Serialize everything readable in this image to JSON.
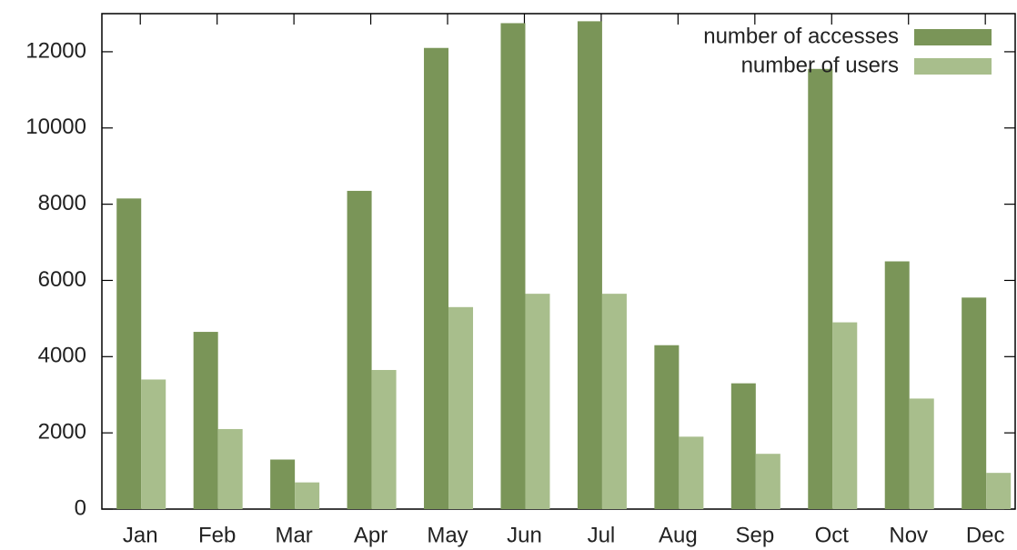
{
  "chart_data": {
    "type": "bar",
    "categories": [
      "Jan",
      "Feb",
      "Mar",
      "Apr",
      "May",
      "Jun",
      "Jul",
      "Aug",
      "Sep",
      "Oct",
      "Nov",
      "Dec"
    ],
    "series": [
      {
        "name": "number of accesses",
        "color": "#7a9558",
        "values": [
          8150,
          4650,
          1300,
          8350,
          12100,
          12750,
          12800,
          4300,
          3300,
          11550,
          6500,
          5550
        ]
      },
      {
        "name": "number of users",
        "color": "#a8be8c",
        "values": [
          3400,
          2100,
          700,
          3650,
          5300,
          5650,
          5650,
          1900,
          1450,
          4900,
          2900,
          950
        ]
      }
    ],
    "ylim": [
      0,
      13000
    ],
    "yticks": [
      0,
      2000,
      4000,
      6000,
      8000,
      10000,
      12000
    ],
    "grid": false,
    "legend": "top-right"
  }
}
